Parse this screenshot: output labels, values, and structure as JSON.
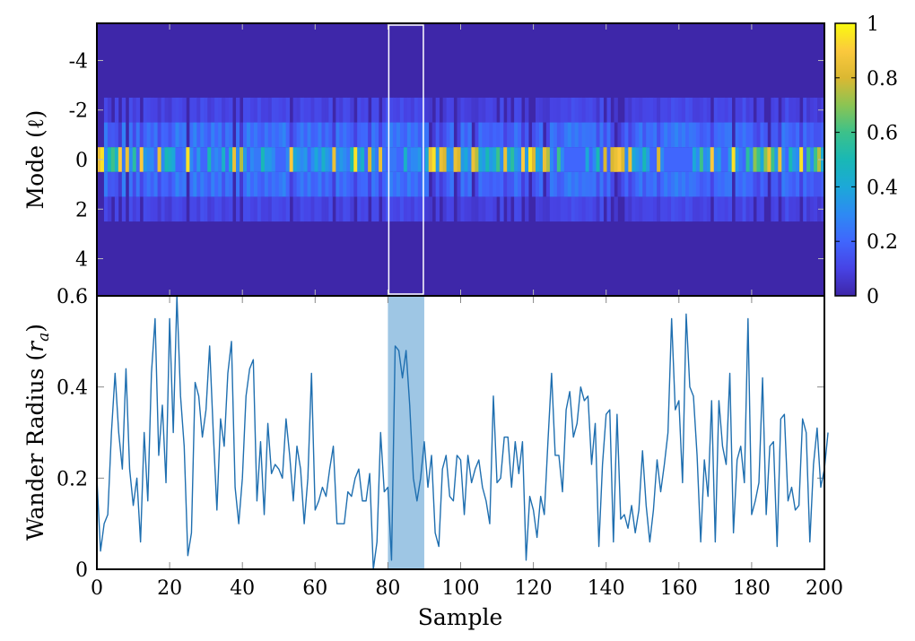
{
  "chart_data": [
    {
      "type": "heatmap",
      "ylabel": "Mode (ℓ)",
      "x_range": [
        0,
        200
      ],
      "y_range": [
        -5.5,
        5.5
      ],
      "y_ticks": [
        "-4",
        "-2",
        "0",
        "2",
        "4"
      ],
      "y_tick_values": [
        -4,
        -2,
        0,
        2,
        4
      ],
      "colormap": "viridis",
      "colorbar": {
        "range": [
          0,
          1
        ],
        "ticks": [
          "0",
          "0.2",
          "0.4",
          "0.6",
          "0.8",
          "1"
        ],
        "tick_values": [
          0,
          0.2,
          0.4,
          0.6,
          0.8,
          1
        ]
      },
      "highlight_box": {
        "x_start": 80,
        "x_end": 90,
        "color": "#ffffff"
      },
      "mode_zero_intensity": [
        0.85,
        0.95,
        0.3,
        0.5,
        0.6,
        0.45,
        0.9,
        0.25,
        0.85,
        0.3,
        0.55,
        0.2,
        0.9,
        0.35,
        0.3,
        0.3,
        0.2,
        0.85,
        0.3,
        0.5,
        0.45,
        0.4,
        0.2,
        0.2,
        0.25,
        0.95,
        0.3,
        0.2,
        0.35,
        0.2,
        0.2,
        0.5,
        0.25,
        0.3,
        0.25,
        0.45,
        0.2,
        0.45,
        0.85,
        0.3,
        0.75,
        0.35,
        0.2,
        0.3,
        0.25,
        0.25,
        0.5,
        0.35,
        0.35,
        0.3,
        0.2,
        0.2,
        0.2,
        0.3,
        0.9,
        0.4,
        0.35,
        0.3,
        0.35,
        0.2,
        0.3,
        0.4,
        0.3,
        0.45,
        0.35,
        0.3,
        0.85,
        0.3,
        0.35,
        0.3,
        0.25,
        0.5,
        0.95,
        0.35,
        0.45,
        0.2,
        0.8,
        0.35,
        0.25,
        0.85,
        0.25,
        0.2,
        0.25,
        0.25,
        0.2,
        0.2,
        0.45,
        0.25,
        0.3,
        0.3,
        0.35,
        0.2,
        0.4,
        0.85,
        0.95,
        0.35,
        0.85,
        0.8,
        0.35,
        0.3,
        0.85,
        0.8,
        0.35,
        0.4,
        0.3,
        0.85,
        0.75,
        0.4,
        0.35,
        0.5,
        0.35,
        0.4,
        0.6,
        0.3,
        0.85,
        0.4,
        0.55,
        0.35,
        0.3,
        0.9,
        0.35,
        0.95,
        0.8,
        0.4,
        0.35,
        0.85,
        0.75,
        0.3,
        0.2,
        0.6,
        0.3,
        0.2,
        0.2,
        0.2,
        0.2,
        0.2,
        0.2,
        0.4,
        0.2,
        0.3,
        0.5,
        0.2,
        0.8,
        0.2,
        0.8,
        0.85,
        0.9,
        0.8,
        0.3,
        0.85,
        0.4,
        0.35,
        0.3,
        0.5,
        0.35,
        0.2,
        0.2,
        0.8,
        0.3,
        0.2,
        0.2,
        0.2,
        0.2,
        0.2,
        0.2,
        0.2,
        0.2,
        0.4,
        0.3,
        0.6,
        0.3,
        0.35,
        0.9,
        0.3,
        0.35,
        0.2,
        0.2,
        0.35,
        0.95,
        0.35,
        0.25,
        0.2,
        0.55,
        0.3,
        0.7,
        0.6,
        0.4,
        0.7,
        0.85,
        0.6,
        0.35,
        0.85,
        0.3,
        0.2,
        0.5,
        0.35,
        0.3,
        0.95,
        0.2,
        0.6,
        0.3,
        0.6,
        0.75,
        0.4
      ]
    },
    {
      "type": "line",
      "xlabel": "Sample",
      "ylabel": "Wander Radius (r_a)",
      "ylabel_main": "Wander Radius (",
      "ylabel_sym": "r",
      "ylabel_sub": "a",
      "ylabel_close": ")",
      "xlim": [
        0,
        200
      ],
      "ylim": [
        0,
        0.6
      ],
      "x_ticks": [
        "0",
        "20",
        "40",
        "60",
        "80",
        "100",
        "120",
        "140",
        "160",
        "180",
        "200"
      ],
      "x_tick_values": [
        0,
        20,
        40,
        60,
        80,
        100,
        120,
        140,
        160,
        180,
        200
      ],
      "y_ticks": [
        "0",
        "0.2",
        "0.4",
        "0.6"
      ],
      "y_tick_values": [
        0,
        0.2,
        0.4,
        0.6
      ],
      "line_color": "#1f6fb0",
      "highlight_span": {
        "x_start": 80,
        "x_end": 90,
        "color": "#9ec6e4"
      },
      "series": [
        {
          "values": [
            0.2,
            0.04,
            0.1,
            0.12,
            0.3,
            0.43,
            0.3,
            0.22,
            0.44,
            0.22,
            0.14,
            0.2,
            0.06,
            0.3,
            0.15,
            0.43,
            0.55,
            0.25,
            0.36,
            0.19,
            0.55,
            0.3,
            0.6,
            0.38,
            0.27,
            0.03,
            0.08,
            0.41,
            0.38,
            0.29,
            0.35,
            0.49,
            0.3,
            0.13,
            0.33,
            0.27,
            0.43,
            0.5,
            0.18,
            0.1,
            0.2,
            0.38,
            0.44,
            0.46,
            0.15,
            0.28,
            0.12,
            0.32,
            0.21,
            0.23,
            0.22,
            0.2,
            0.33,
            0.25,
            0.15,
            0.27,
            0.22,
            0.1,
            0.2,
            0.43,
            0.13,
            0.15,
            0.18,
            0.16,
            0.22,
            0.27,
            0.1,
            0.1,
            0.1,
            0.17,
            0.16,
            0.2,
            0.22,
            0.15,
            0.15,
            0.21,
            0.0,
            0.06,
            0.3,
            0.17,
            0.18,
            0.02,
            0.49,
            0.48,
            0.42,
            0.48,
            0.36,
            0.2,
            0.15,
            0.2,
            0.28,
            0.18,
            0.25,
            0.08,
            0.05,
            0.22,
            0.25,
            0.16,
            0.15,
            0.25,
            0.24,
            0.12,
            0.25,
            0.19,
            0.22,
            0.24,
            0.18,
            0.15,
            0.1,
            0.38,
            0.19,
            0.2,
            0.29,
            0.29,
            0.18,
            0.28,
            0.21,
            0.28,
            0.02,
            0.16,
            0.13,
            0.07,
            0.16,
            0.12,
            0.28,
            0.43,
            0.25,
            0.25,
            0.17,
            0.35,
            0.39,
            0.29,
            0.32,
            0.4,
            0.37,
            0.38,
            0.23,
            0.32,
            0.05,
            0.23,
            0.34,
            0.35,
            0.06,
            0.34,
            0.11,
            0.12,
            0.09,
            0.14,
            0.08,
            0.13,
            0.26,
            0.14,
            0.06,
            0.13,
            0.24,
            0.17,
            0.23,
            0.3,
            0.55,
            0.35,
            0.37,
            0.19,
            0.56,
            0.4,
            0.38,
            0.25,
            0.06,
            0.24,
            0.16,
            0.37,
            0.06,
            0.37,
            0.27,
            0.23,
            0.43,
            0.08,
            0.24,
            0.27,
            0.19,
            0.55,
            0.12,
            0.15,
            0.19,
            0.42,
            0.12,
            0.27,
            0.28,
            0.05,
            0.33,
            0.34,
            0.15,
            0.18,
            0.13,
            0.14,
            0.33,
            0.3,
            0.06,
            0.23,
            0.31,
            0.18,
            0.22,
            0.3
          ]
        }
      ]
    }
  ]
}
